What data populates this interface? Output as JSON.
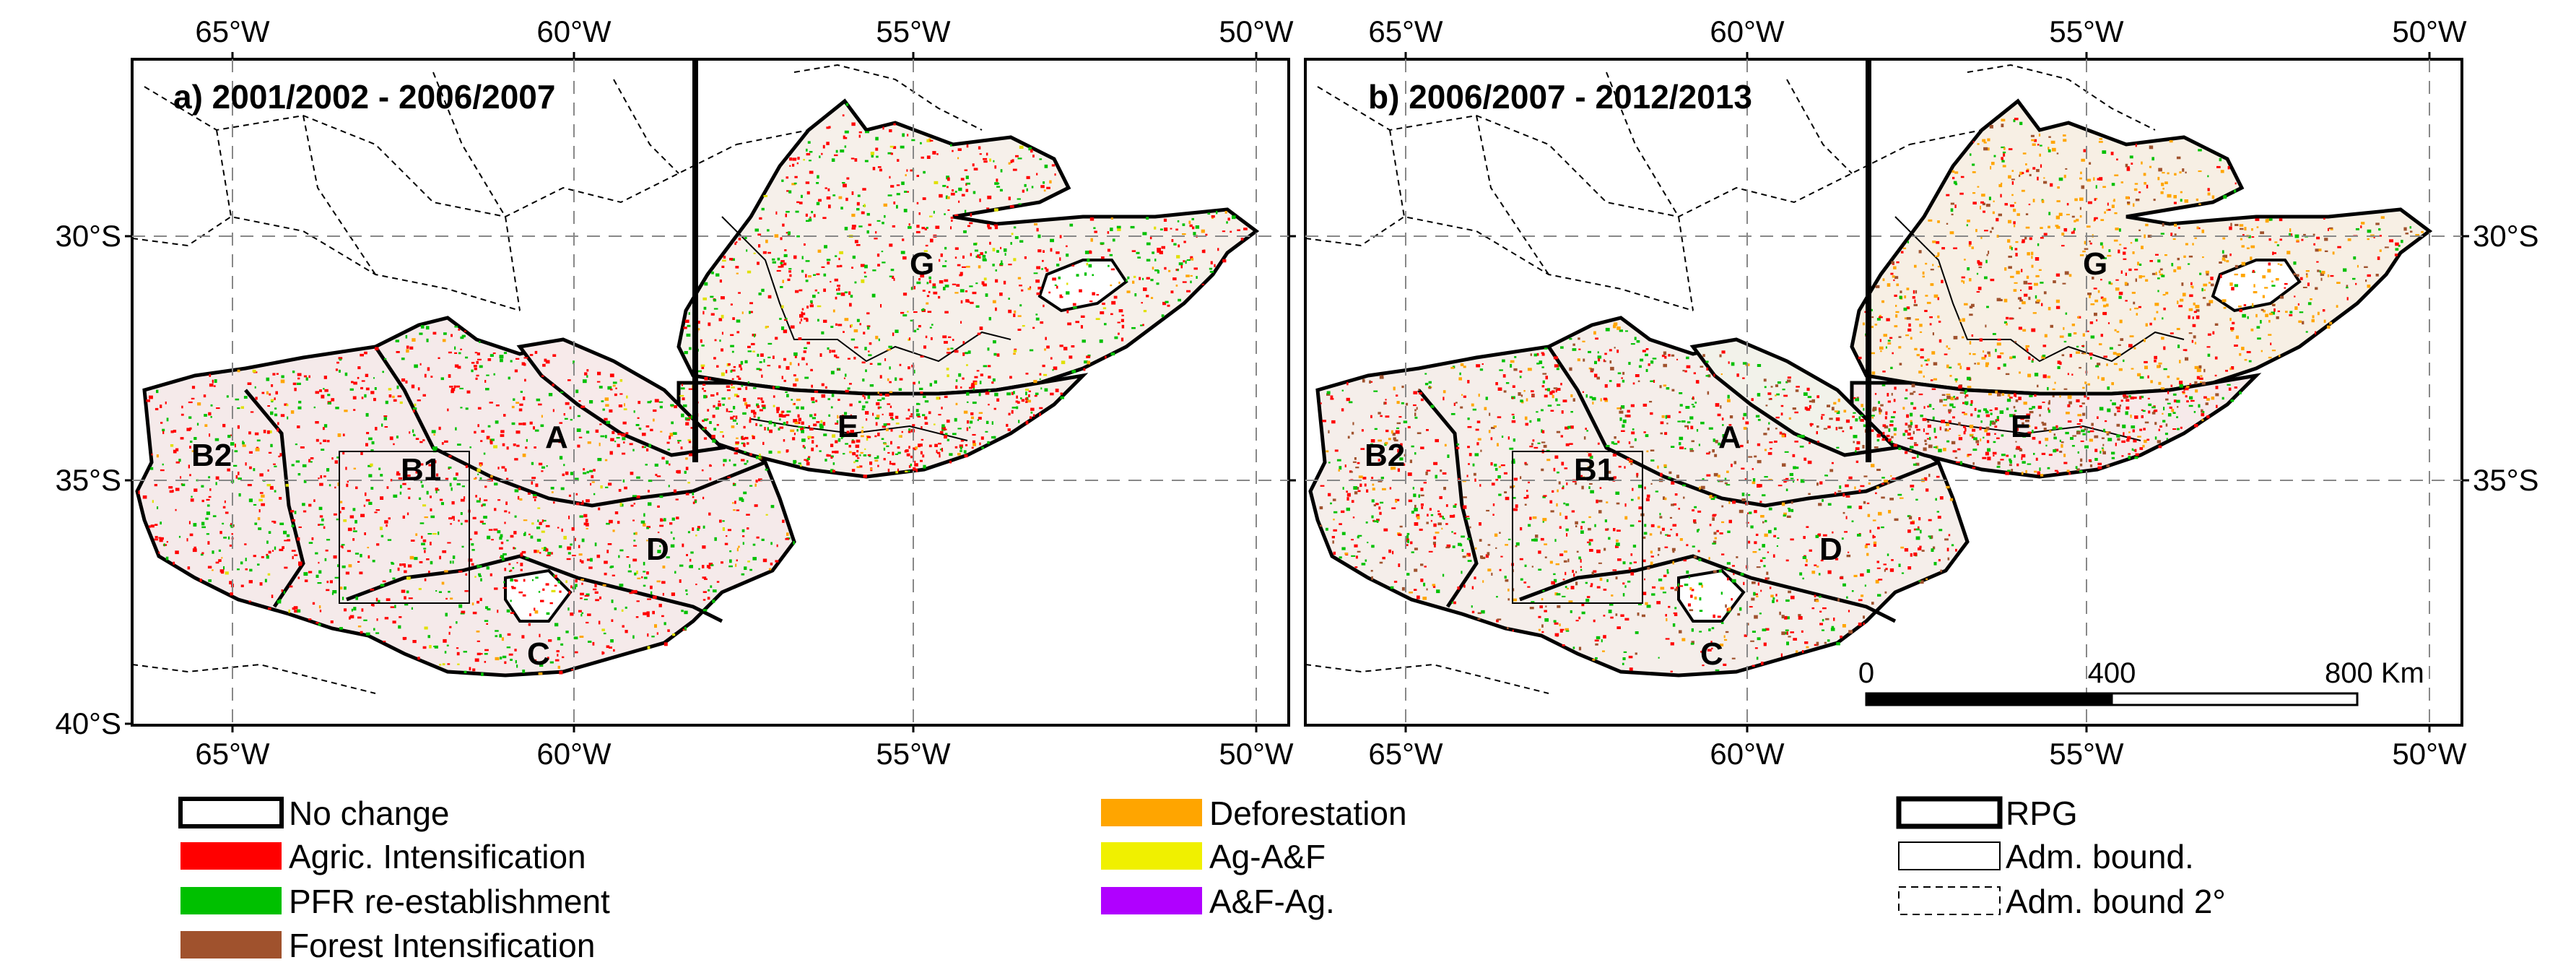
{
  "panels": [
    {
      "id": "a",
      "title": "a) 2001/2002 - 2006/2007",
      "lon_ticks": [
        "65°W",
        "60°W",
        "55°W",
        "50°W"
      ],
      "lat_ticks": [
        "30°S",
        "35°S",
        "40°S"
      ],
      "regions": [
        "G",
        "A",
        "E",
        "B2",
        "B1",
        "D",
        "C"
      ]
    },
    {
      "id": "b",
      "title": "b) 2006/2007 - 2012/2013",
      "lon_ticks": [
        "65°W",
        "60°W",
        "55°W",
        "50°W"
      ],
      "lat_ticks": [
        "30°S",
        "35°S"
      ],
      "regions": [
        "G",
        "A",
        "E",
        "B2",
        "B1",
        "D",
        "C"
      ]
    }
  ],
  "scale_bar": {
    "labels": [
      "0",
      "400",
      "800 Km"
    ]
  },
  "legend": {
    "col1": [
      {
        "label": "No change",
        "color": "#ffffff"
      },
      {
        "label": "Agric. Intensification",
        "color": "#ff0000"
      },
      {
        "label": "PFR re-establishment",
        "color": "#00c000"
      },
      {
        "label": "Forest Intensification",
        "color": "#a0522d"
      }
    ],
    "col2": [
      {
        "label": "Deforestation",
        "color": "#ffa500"
      },
      {
        "label": "Ag-A&F",
        "color": "#f0f000"
      },
      {
        "label": "A&F-Ag.",
        "color": "#b000ff"
      }
    ],
    "col3": [
      {
        "label": "RPG",
        "style": "thick"
      },
      {
        "label": "Adm. bound.",
        "style": "thin"
      },
      {
        "label": "Adm. bound 2°",
        "style": "dashed"
      }
    ]
  }
}
